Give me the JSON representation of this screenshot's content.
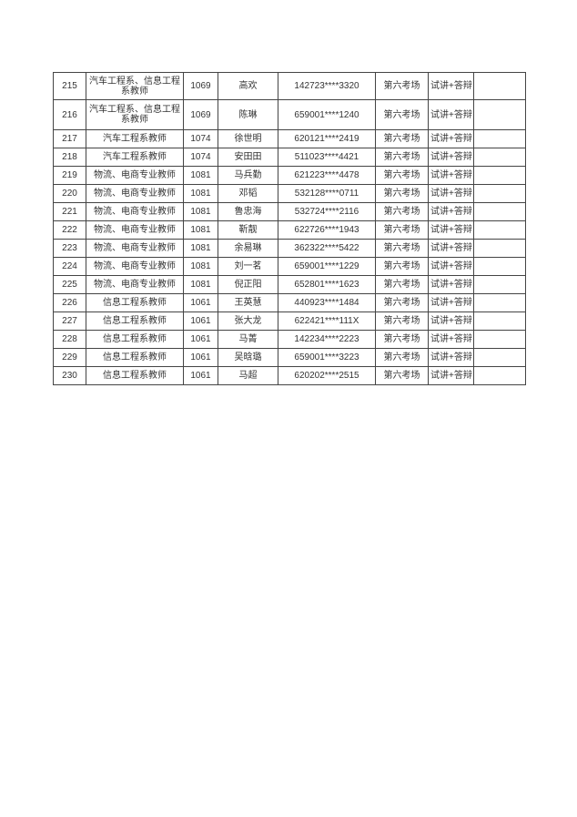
{
  "rows": [
    {
      "no": "215",
      "position": "汽车工程系、信息工程系教师",
      "code": "1069",
      "name": "高欢",
      "id": "142723****3320",
      "room": "第六考场",
      "mode": "试讲+答辩",
      "note": ""
    },
    {
      "no": "216",
      "position": "汽车工程系、信息工程系教师",
      "code": "1069",
      "name": "陈琳",
      "id": "659001****1240",
      "room": "第六考场",
      "mode": "试讲+答辩",
      "note": ""
    },
    {
      "no": "217",
      "position": "汽车工程系教师",
      "code": "1074",
      "name": "徐世明",
      "id": "620121****2419",
      "room": "第六考场",
      "mode": "试讲+答辩",
      "note": ""
    },
    {
      "no": "218",
      "position": "汽车工程系教师",
      "code": "1074",
      "name": "安田田",
      "id": "511023****4421",
      "room": "第六考场",
      "mode": "试讲+答辩",
      "note": ""
    },
    {
      "no": "219",
      "position": "物流、电商专业教师",
      "code": "1081",
      "name": "马兵勤",
      "id": "621223****4478",
      "room": "第六考场",
      "mode": "试讲+答辩",
      "note": ""
    },
    {
      "no": "220",
      "position": "物流、电商专业教师",
      "code": "1081",
      "name": "邓韬",
      "id": "532128****0711",
      "room": "第六考场",
      "mode": "试讲+答辩",
      "note": ""
    },
    {
      "no": "221",
      "position": "物流、电商专业教师",
      "code": "1081",
      "name": "鲁忠海",
      "id": "532724****2116",
      "room": "第六考场",
      "mode": "试讲+答辩",
      "note": ""
    },
    {
      "no": "222",
      "position": "物流、电商专业教师",
      "code": "1081",
      "name": "靳靓",
      "id": "622726****1943",
      "room": "第六考场",
      "mode": "试讲+答辩",
      "note": ""
    },
    {
      "no": "223",
      "position": "物流、电商专业教师",
      "code": "1081",
      "name": "余易琳",
      "id": "362322****5422",
      "room": "第六考场",
      "mode": "试讲+答辩",
      "note": ""
    },
    {
      "no": "224",
      "position": "物流、电商专业教师",
      "code": "1081",
      "name": "刘一茗",
      "id": "659001****1229",
      "room": "第六考场",
      "mode": "试讲+答辩",
      "note": ""
    },
    {
      "no": "225",
      "position": "物流、电商专业教师",
      "code": "1081",
      "name": "倪正阳",
      "id": "652801****1623",
      "room": "第六考场",
      "mode": "试讲+答辩",
      "note": ""
    },
    {
      "no": "226",
      "position": "信息工程系教师",
      "code": "1061",
      "name": "王英慧",
      "id": "440923****1484",
      "room": "第六考场",
      "mode": "试讲+答辩",
      "note": ""
    },
    {
      "no": "227",
      "position": "信息工程系教师",
      "code": "1061",
      "name": "张大龙",
      "id": "622421****111X",
      "room": "第六考场",
      "mode": "试讲+答辩",
      "note": ""
    },
    {
      "no": "228",
      "position": "信息工程系教师",
      "code": "1061",
      "name": "马菁",
      "id": "142234****2223",
      "room": "第六考场",
      "mode": "试讲+答辩",
      "note": ""
    },
    {
      "no": "229",
      "position": "信息工程系教师",
      "code": "1061",
      "name": "吴晗璐",
      "id": "659001****3223",
      "room": "第六考场",
      "mode": "试讲+答辩",
      "note": ""
    },
    {
      "no": "230",
      "position": "信息工程系教师",
      "code": "1061",
      "name": "马超",
      "id": "620202****2515",
      "room": "第六考场",
      "mode": "试讲+答辩",
      "note": ""
    }
  ]
}
